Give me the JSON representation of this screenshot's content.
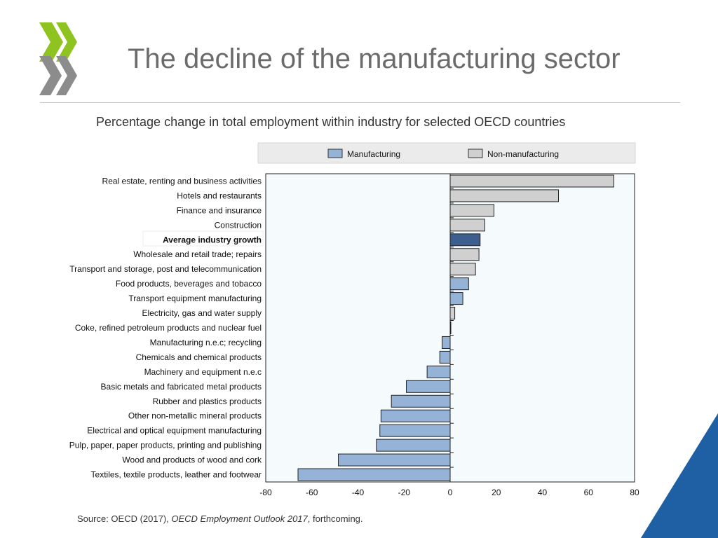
{
  "slide": {
    "title": "The decline of the manufacturing sector",
    "subtitle": "Percentage change in total employment within industry for selected OECD countries",
    "source_prefix": "Source: OECD (2017), ",
    "source_title": "OECD Employment Outlook 2017",
    "source_suffix": ", forthcoming."
  },
  "colors": {
    "manufacturing": "#95b3d7",
    "non_manufacturing": "#d0d0d0",
    "average": "#3d5f8f",
    "logo_green": "#8fc31f",
    "logo_gray": "#8c8c8c",
    "corner_blue": "#1f5fa3"
  },
  "chart_data": {
    "type": "bar",
    "orientation": "horizontal",
    "title": "Percentage change in total employment within industry for selected OECD countries",
    "xlim": [
      -80,
      80
    ],
    "xticks": [
      -80,
      -60,
      -40,
      -20,
      0,
      20,
      40,
      60,
      80
    ],
    "legend": {
      "position": "top",
      "entries": [
        {
          "label": "Manufacturing",
          "key": "manufacturing"
        },
        {
          "label": "Non-manufacturing",
          "key": "non_manufacturing"
        }
      ]
    },
    "categories": [
      {
        "label": "Real estate, renting and business activities",
        "value": 71,
        "group": "non_manufacturing"
      },
      {
        "label": "Hotels and restaurants",
        "value": 47,
        "group": "non_manufacturing"
      },
      {
        "label": "Finance and insurance",
        "value": 19,
        "group": "non_manufacturing"
      },
      {
        "label": "Construction",
        "value": 15,
        "group": "non_manufacturing"
      },
      {
        "label": "Average industry growth",
        "value": 13,
        "group": "average",
        "bold": true
      },
      {
        "label": "Wholesale and retail trade; repairs",
        "value": 12.5,
        "group": "non_manufacturing"
      },
      {
        "label": "Transport and storage, post and telecommunication",
        "value": 11,
        "group": "non_manufacturing"
      },
      {
        "label": "Food products, beverages and tobacco",
        "value": 8,
        "group": "manufacturing"
      },
      {
        "label": "Transport equipment manufacturing",
        "value": 5.5,
        "group": "manufacturing"
      },
      {
        "label": "Electricity, gas and water supply",
        "value": 2,
        "group": "non_manufacturing"
      },
      {
        "label": "Coke, refined petroleum products and nuclear fuel",
        "value": 0.3,
        "group": "manufacturing"
      },
      {
        "label": "Manufacturing n.e.c; recycling",
        "value": -3.5,
        "group": "manufacturing"
      },
      {
        "label": "Chemicals and chemical products",
        "value": -4.5,
        "group": "manufacturing"
      },
      {
        "label": "Machinery and equipment n.e.c",
        "value": -10,
        "group": "manufacturing"
      },
      {
        "label": "Basic metals and fabricated metal products",
        "value": -19,
        "group": "manufacturing"
      },
      {
        "label": "Rubber and plastics products",
        "value": -25.5,
        "group": "manufacturing"
      },
      {
        "label": "Other non-metallic mineral products",
        "value": -30,
        "group": "manufacturing"
      },
      {
        "label": "Electrical and optical equipment manufacturing",
        "value": -30.5,
        "group": "manufacturing"
      },
      {
        "label": "Pulp, paper, paper products, printing and publishing",
        "value": -32,
        "group": "manufacturing"
      },
      {
        "label": "Wood and products of wood and cork",
        "value": -48.5,
        "group": "manufacturing"
      },
      {
        "label": "Textiles, textile products, leather and footwear",
        "value": -66,
        "group": "manufacturing"
      }
    ]
  }
}
